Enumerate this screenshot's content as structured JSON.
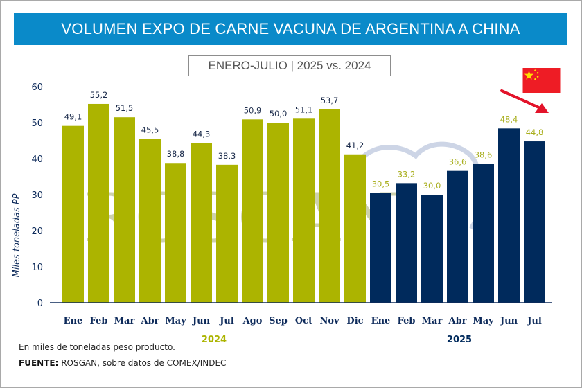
{
  "header": {
    "title": "VOLUMEN EXPO DE CARNE VACUNA DE ARGENTINA A CHINA",
    "subtitle": "ENERO-JULIO | 2025 vs. 2024"
  },
  "colors": {
    "title_bg": "#0a8ac9",
    "series_2024": "#acb400",
    "series_2025": "#002a5c",
    "label_2024": "#1a2a4a",
    "label_2025": "#a8ae1c",
    "axis": "#0d2a5a",
    "arrow": "#e3132a",
    "flag_red": "#ee1c25",
    "flag_yellow": "#ffde00"
  },
  "decorations": {
    "flag": "china-flag-icon",
    "arrow": "downward-trend-arrow",
    "watermark_text": "ROSGAN"
  },
  "footer": {
    "note": "En miles de toneladas peso producto.",
    "source_label": "FUENTE:",
    "source_text": " ROSGAN, sobre datos de COMEX/INDEC"
  },
  "chart_data": {
    "type": "bar",
    "title": "VOLUMEN EXPO DE CARNE VACUNA DE ARGENTINA A CHINA",
    "subtitle": "ENERO-JULIO | 2025 vs. 2024",
    "xlabel": "",
    "ylabel": "Miles toneladas PP",
    "ylim": [
      0,
      60
    ],
    "yticks": [
      0,
      10,
      20,
      30,
      40,
      50,
      60
    ],
    "grid": false,
    "decimal_separator": ",",
    "categories": [
      "Ene",
      "Feb",
      "Mar",
      "Abr",
      "May",
      "Jun",
      "Jul",
      "Ago",
      "Sep",
      "Oct",
      "Nov",
      "Dic",
      "Ene",
      "Feb",
      "Mar",
      "Abr",
      "May",
      "Jun",
      "Jul"
    ],
    "series": [
      {
        "name": "2024",
        "categories": [
          "Ene",
          "Feb",
          "Mar",
          "Abr",
          "May",
          "Jun",
          "Jul",
          "Ago",
          "Sep",
          "Oct",
          "Nov",
          "Dic"
        ],
        "values": [
          49.1,
          55.2,
          51.5,
          45.5,
          38.8,
          44.3,
          38.3,
          50.9,
          50.0,
          51.1,
          53.7,
          41.2
        ]
      },
      {
        "name": "2025",
        "categories": [
          "Ene",
          "Feb",
          "Mar",
          "Abr",
          "May",
          "Jun",
          "Jul"
        ],
        "values": [
          30.5,
          33.2,
          30.0,
          36.6,
          38.6,
          48.4,
          44.8
        ]
      }
    ],
    "group_labels": [
      "2024",
      "2025"
    ]
  }
}
